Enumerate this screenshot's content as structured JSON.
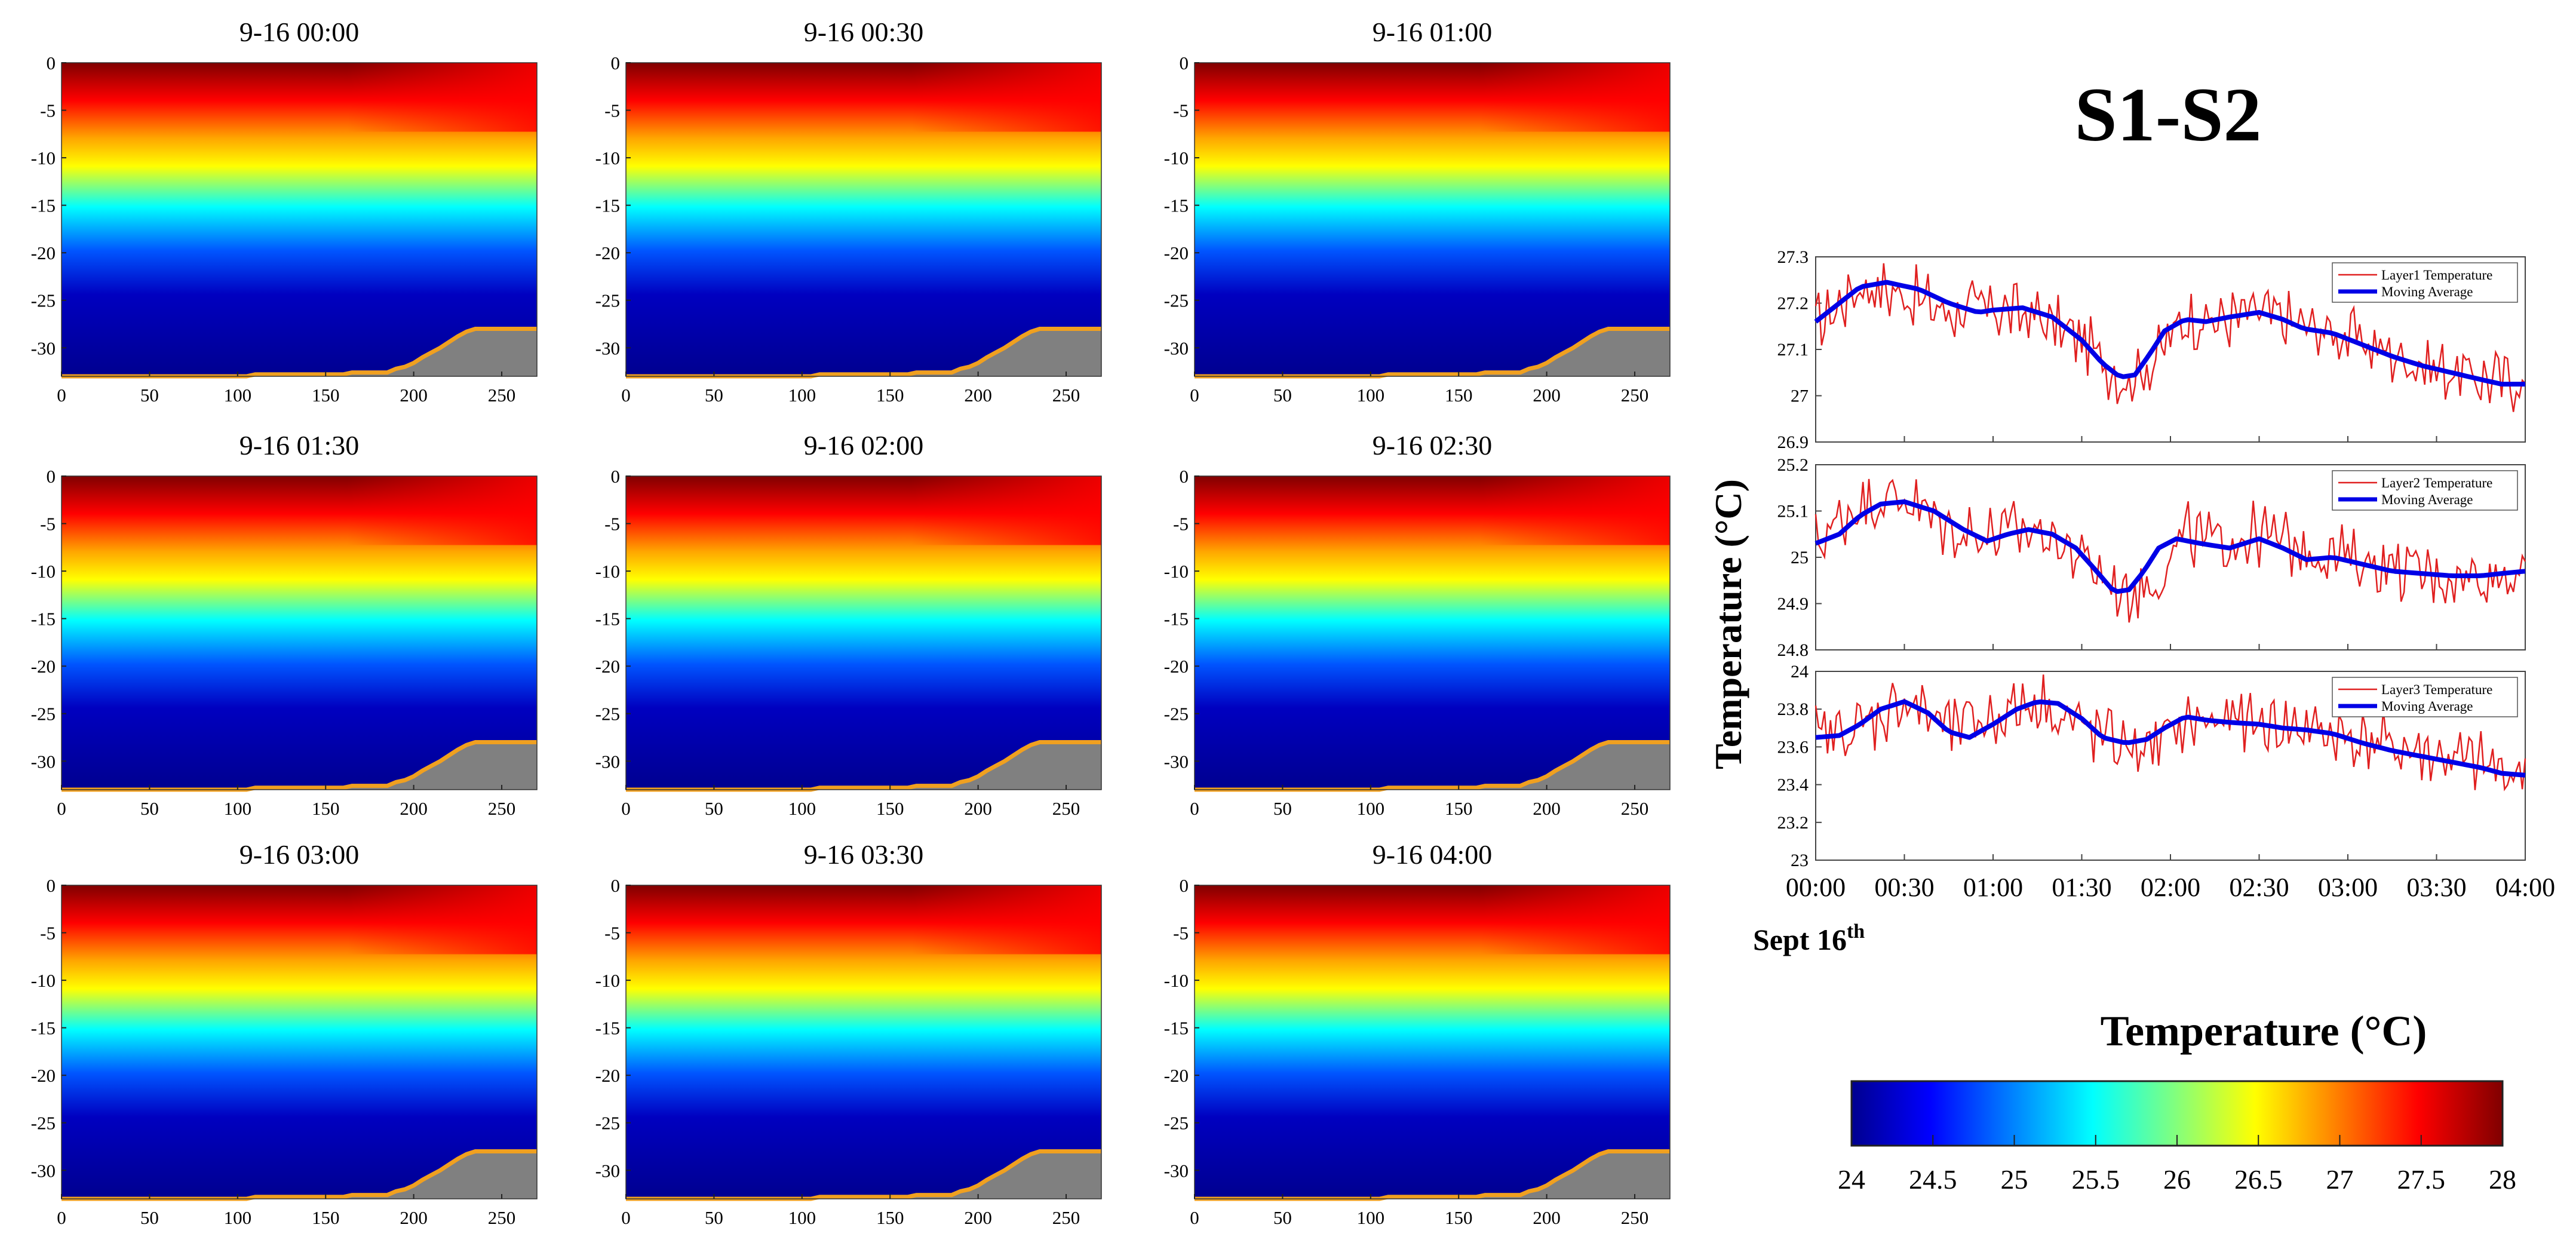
{
  "panels": [
    {
      "title": "9-16 00:00"
    },
    {
      "title": "9-16 00:30"
    },
    {
      "title": "9-16 01:00"
    },
    {
      "title": "9-16 01:30"
    },
    {
      "title": "9-16 02:00"
    },
    {
      "title": "9-16 02:30"
    },
    {
      "title": "9-16 03:00"
    },
    {
      "title": "9-16 03:30"
    },
    {
      "title": "9-16 04:00"
    }
  ],
  "main_title": "S1-S2",
  "ts_ylabel": "Temperature (°C)",
  "ts_date": "Sept 16",
  "ts_date_sup": "th",
  "colorbar": {
    "title": "Temperature (°C)",
    "ticks": [
      "24",
      "24.5",
      "25",
      "25.5",
      "26",
      "26.5",
      "27",
      "27.5",
      "28"
    ],
    "range": [
      24,
      28
    ],
    "stops": [
      "#00008f",
      "#0000ff",
      "#00ffff",
      "#ffff00",
      "#ff0000",
      "#800000"
    ]
  },
  "colors": {
    "raw": "#e02020",
    "avg": "#0000e6",
    "terrain": "#808080",
    "terrain_edge": "#f0a020"
  },
  "chart_data": [
    {
      "type": "heatmap",
      "panels": 9,
      "xlabel": "",
      "ylabel": "",
      "x_ticks": [
        0,
        50,
        100,
        150,
        200,
        250
      ],
      "y_ticks": [
        0,
        -5,
        -10,
        -15,
        -20,
        -25,
        -30
      ],
      "xlim": [
        0,
        270
      ],
      "ylim": [
        -33,
        0
      ],
      "value_range": [
        24,
        28
      ],
      "bottom_profile": {
        "x": [
          0,
          105,
          110,
          160,
          165,
          185,
          190,
          195,
          200,
          205,
          210,
          215,
          220,
          225,
          230,
          235,
          240,
          270
        ],
        "depth": [
          -33,
          -33,
          -32.8,
          -32.8,
          -32.6,
          -32.6,
          -32.2,
          -32,
          -31.6,
          -31,
          -30.5,
          -30,
          -29.4,
          -28.8,
          -28.3,
          -28,
          -28,
          -28
        ]
      }
    },
    {
      "type": "line",
      "subplot": 1,
      "xlabel": "",
      "x_ticks": [
        "00:00",
        "00:30",
        "01:00",
        "01:30",
        "02:00",
        "02:30",
        "03:00",
        "03:30",
        "04:00"
      ],
      "xlim_minutes": [
        0,
        240
      ],
      "ylim": [
        26.9,
        27.3
      ],
      "y_ticks": [
        "26.9",
        "27",
        "27.1",
        "27.2",
        "27.3"
      ],
      "legend": [
        "Layer1 Temperature",
        "Moving Average"
      ],
      "legend_position": "top-right",
      "series": [
        {
          "name": "Layer1 Temperature",
          "x": [
            0,
            15,
            30,
            45,
            60,
            75,
            90,
            105,
            115,
            125,
            135,
            150,
            165,
            180,
            195,
            210,
            225,
            240
          ],
          "values": [
            27.15,
            27.24,
            27.22,
            27.18,
            27.19,
            27.17,
            27.12,
            27.03,
            27.08,
            27.17,
            27.16,
            27.18,
            27.15,
            27.13,
            27.09,
            27.06,
            27.04,
            27.03
          ]
        },
        {
          "name": "Moving Average",
          "x": [
            0,
            8,
            15,
            24,
            35,
            45,
            55,
            60,
            70,
            80,
            90,
            97,
            103,
            108,
            113,
            118,
            125,
            132,
            140,
            150,
            158,
            165,
            175,
            185,
            195,
            205,
            215,
            225,
            232,
            240
          ],
          "values": [
            27.16,
            27.2,
            27.235,
            27.245,
            27.23,
            27.2,
            27.18,
            27.185,
            27.19,
            27.17,
            27.12,
            27.07,
            27.04,
            27.045,
            27.09,
            27.14,
            27.165,
            27.16,
            27.17,
            27.18,
            27.165,
            27.145,
            27.135,
            27.11,
            27.085,
            27.065,
            27.05,
            27.035,
            27.025,
            27.025
          ]
        }
      ]
    },
    {
      "type": "line",
      "subplot": 2,
      "xlabel": "",
      "x_ticks": [
        "00:00",
        "00:30",
        "01:00",
        "01:30",
        "02:00",
        "02:30",
        "03:00",
        "03:30",
        "04:00"
      ],
      "xlim_minutes": [
        0,
        240
      ],
      "ylim": [
        24.8,
        25.2
      ],
      "y_ticks": [
        "24.8",
        "24.9",
        "25",
        "25.1",
        "25.2"
      ],
      "legend": [
        "Layer2 Temperature",
        "Moving Average"
      ],
      "legend_position": "top-right",
      "series": [
        {
          "name": "Layer2 Temperature",
          "x": [
            0,
            15,
            30,
            45,
            60,
            75,
            90,
            105,
            115,
            125,
            135,
            150,
            165,
            180,
            195,
            210,
            225,
            240
          ],
          "values": [
            25.03,
            25.12,
            25.13,
            25.06,
            25.05,
            25.06,
            25.0,
            24.92,
            24.95,
            25.05,
            25.03,
            25.05,
            25.02,
            25.0,
            24.98,
            24.96,
            24.96,
            24.97
          ]
        },
        {
          "name": "Moving Average",
          "x": [
            0,
            8,
            15,
            22,
            30,
            40,
            50,
            58,
            65,
            72,
            80,
            88,
            95,
            101,
            106,
            111,
            116,
            122,
            130,
            140,
            150,
            158,
            166,
            175,
            185,
            195,
            205,
            215,
            225,
            232,
            240
          ],
          "values": [
            25.03,
            25.05,
            25.09,
            25.115,
            25.12,
            25.1,
            25.06,
            25.035,
            25.05,
            25.06,
            25.05,
            25.02,
            24.97,
            24.925,
            24.93,
            24.97,
            25.02,
            25.04,
            25.03,
            25.02,
            25.04,
            25.02,
            24.995,
            25.0,
            24.985,
            24.97,
            24.965,
            24.96,
            24.96,
            24.965,
            24.97
          ]
        }
      ]
    },
    {
      "type": "line",
      "subplot": 3,
      "xlabel": "",
      "x_ticks": [
        "00:00",
        "00:30",
        "01:00",
        "01:30",
        "02:00",
        "02:30",
        "03:00",
        "03:30",
        "04:00"
      ],
      "xlim_minutes": [
        0,
        240
      ],
      "ylim": [
        23.0,
        24.0
      ],
      "y_ticks": [
        "23",
        "23.2",
        "23.4",
        "23.6",
        "23.8",
        "24"
      ],
      "legend": [
        "Layer3 Temperature",
        "Moving Average"
      ],
      "legend_position": "top-right",
      "series": [
        {
          "name": "Layer3 Temperature",
          "x": [
            0,
            15,
            30,
            45,
            60,
            75,
            90,
            105,
            115,
            125,
            135,
            150,
            165,
            180,
            195,
            210,
            225,
            240
          ],
          "values": [
            23.65,
            23.7,
            23.85,
            23.7,
            23.75,
            23.85,
            23.7,
            23.6,
            23.6,
            23.72,
            23.74,
            23.72,
            23.7,
            23.65,
            23.6,
            23.55,
            23.5,
            23.45
          ]
        },
        {
          "name": "Moving Average",
          "x": [
            0,
            8,
            15,
            22,
            30,
            38,
            45,
            52,
            60,
            68,
            75,
            82,
            90,
            97,
            105,
            112,
            118,
            125,
            133,
            140,
            150,
            158,
            166,
            175,
            185,
            195,
            205,
            215,
            225,
            232,
            240
          ],
          "values": [
            23.65,
            23.66,
            23.72,
            23.8,
            23.84,
            23.78,
            23.68,
            23.65,
            23.72,
            23.8,
            23.84,
            23.83,
            23.75,
            23.65,
            23.62,
            23.64,
            23.7,
            23.76,
            23.74,
            23.73,
            23.72,
            23.7,
            23.69,
            23.67,
            23.62,
            23.58,
            23.55,
            23.52,
            23.49,
            23.46,
            23.45
          ]
        }
      ]
    }
  ]
}
